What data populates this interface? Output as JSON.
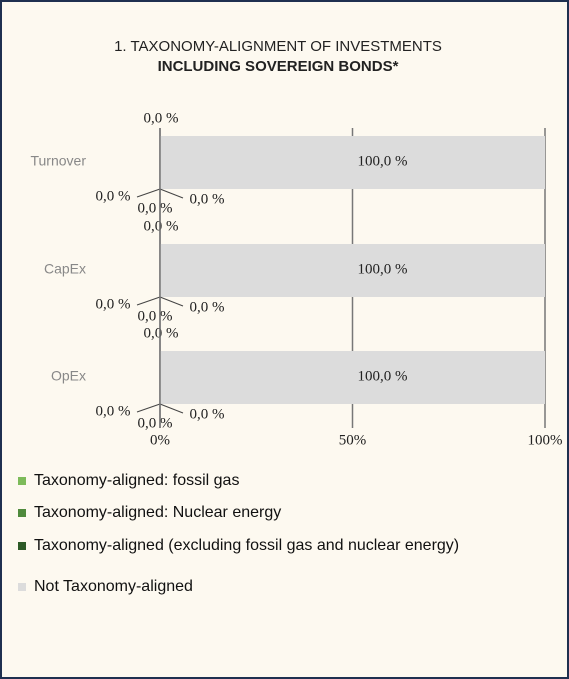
{
  "chart_data": {
    "type": "stacked-barh",
    "title": "1. TAXONOMY-ALIGNMENT OF INVESTMENTS",
    "subtitle": "INCLUDING SOVEREIGN BONDS*",
    "categories": [
      "Turnover",
      "CapEx",
      "OpEx"
    ],
    "series": [
      {
        "name": "Taxonomy-aligned: fossil gas",
        "color": "#7dbb5a",
        "values": [
          0,
          0,
          0
        ],
        "value_labels": [
          "0,0 %",
          "0,0 %",
          "0,0 %"
        ]
      },
      {
        "name": "Taxonomy-aligned: Nuclear energy",
        "color": "#4f8a3c",
        "values": [
          0,
          0,
          0
        ],
        "value_labels": [
          "0,0 %",
          "0,0 %",
          "0,0 %"
        ]
      },
      {
        "name": "Taxonomy-aligned (excluding fossil gas and nuclear energy)",
        "color": "#2d5a27",
        "values": [
          0,
          0,
          0
        ],
        "value_labels": [
          "0,0 %",
          "0,0 %",
          "0,0 %"
        ]
      },
      {
        "name": "Not Taxonomy-aligned",
        "color": "#dcdcdc",
        "values": [
          100,
          100,
          100
        ],
        "value_labels": [
          "100,0 %",
          "100,0 %",
          "100,0 %"
        ]
      }
    ],
    "xlim": [
      0,
      100
    ],
    "xticks": [
      {
        "value": 0,
        "label": "0%"
      },
      {
        "value": 50,
        "label": "50%"
      },
      {
        "value": 100,
        "label": "100%"
      }
    ],
    "grid": true
  }
}
